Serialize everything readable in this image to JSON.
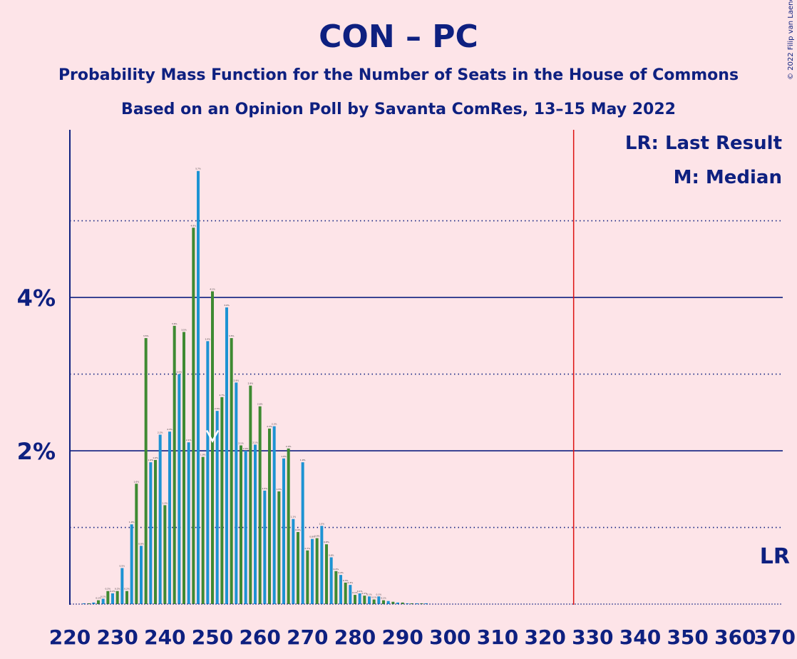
{
  "title": "CON – PC",
  "subtitle1": "Probability Mass Function for the Number of Seats in the House of Commons",
  "subtitle2": "Based on an Opinion Poll by Savanta ComRes, 13–15 May 2022",
  "copyright": "© 2022 Filip van Laenen",
  "legend": {
    "lr": "LR: Last Result",
    "median": "M: Median"
  },
  "lr_label": "LR",
  "colors": {
    "background": "#fde4e8",
    "text": "#0e2080",
    "blue": "#1d93d3",
    "green": "#3e8a32",
    "last_result_line": "#dd1111",
    "axis": "#0e2080"
  },
  "chart_data": {
    "type": "bar",
    "x_start": 221,
    "x": [
      221,
      222,
      223,
      224,
      225,
      226,
      227,
      228,
      229,
      230,
      231,
      232,
      233,
      234,
      235,
      236,
      237,
      238,
      239,
      240,
      241,
      242,
      243,
      244,
      245,
      246,
      247,
      248,
      249,
      250,
      251,
      252,
      253,
      254,
      255,
      256,
      257,
      258,
      259,
      260,
      261,
      262,
      263,
      264,
      265,
      266,
      267,
      268,
      269,
      270,
      271,
      272,
      273,
      274,
      275,
      276,
      277,
      278,
      279,
      280,
      281,
      282,
      283,
      284,
      285,
      286,
      287,
      288,
      289,
      290,
      291,
      292,
      293,
      294,
      295,
      296,
      297,
      298,
      299,
      300,
      301,
      302,
      303,
      304,
      305,
      306,
      307,
      308,
      309,
      310,
      311,
      312,
      313,
      314,
      315,
      316,
      317,
      318,
      319,
      320,
      321,
      322,
      323,
      324,
      325,
      326,
      327,
      328,
      329,
      330,
      331,
      332,
      333,
      334,
      335,
      336,
      337,
      338,
      339,
      340,
      341,
      342,
      343,
      344,
      345,
      346,
      347,
      348,
      349,
      350,
      351,
      352,
      353,
      354,
      355,
      356,
      357,
      358,
      359,
      360,
      361,
      362,
      363,
      364,
      365,
      366,
      367,
      368,
      369,
      370
    ],
    "values": [
      0.0,
      0.0,
      0.01,
      0.01,
      0.02,
      0.05,
      0.07,
      0.17,
      0.14,
      0.17,
      0.47,
      0.17,
      1.04,
      1.57,
      0.76,
      3.47,
      1.85,
      1.88,
      2.21,
      1.29,
      2.25,
      3.63,
      3.0,
      3.55,
      2.11,
      4.91,
      5.65,
      1.92,
      3.43,
      4.08,
      2.52,
      2.7,
      3.87,
      3.47,
      2.89,
      2.07,
      2.0,
      2.85,
      2.08,
      2.58,
      1.48,
      2.29,
      2.32,
      1.47,
      1.9,
      2.03,
      1.11,
      0.94,
      1.85,
      0.7,
      0.85,
      0.86,
      1.02,
      0.78,
      0.61,
      0.43,
      0.38,
      0.28,
      0.25,
      0.12,
      0.14,
      0.11,
      0.1,
      0.06,
      0.1,
      0.05,
      0.04,
      0.03,
      0.02,
      0.02,
      0.01,
      0.01,
      0.01,
      0.01,
      0.01,
      0,
      0,
      0,
      0,
      0,
      0,
      0,
      0,
      0,
      0,
      0,
      0,
      0,
      0,
      0,
      0,
      0,
      0,
      0,
      0,
      0,
      0,
      0,
      0,
      0,
      0,
      0,
      0,
      0,
      0,
      0,
      0,
      0,
      0,
      0,
      0,
      0,
      0,
      0,
      0,
      0,
      0,
      0,
      0,
      0,
      0,
      0,
      0,
      0,
      0,
      0,
      0,
      0,
      0,
      0,
      0,
      0,
      0,
      0,
      0,
      0,
      0,
      0,
      0,
      0,
      0,
      0,
      0,
      0,
      0,
      0,
      0,
      0,
      0,
      0
    ],
    "xlim": [
      220,
      370
    ],
    "ylim": [
      0,
      6.15
    ],
    "x_ticks": [
      220,
      230,
      240,
      250,
      260,
      270,
      280,
      290,
      300,
      310,
      320,
      330,
      340,
      350,
      360,
      370
    ],
    "x_tick_labels": [
      "220",
      "230",
      "240",
      "250",
      "260",
      "270",
      "280",
      "290",
      "300",
      "310",
      "320",
      "330",
      "340",
      "350",
      "360",
      "370"
    ],
    "y_ticks": [
      2,
      4
    ],
    "y_tick_labels": [
      "2%",
      "4%"
    ],
    "y_grid_solid": [
      2,
      4
    ],
    "y_grid_dotted": [
      1,
      3,
      5
    ],
    "last_result": 326,
    "median": 250,
    "bar_colors": "alternate blue (odd seats) / green (even seats)"
  }
}
